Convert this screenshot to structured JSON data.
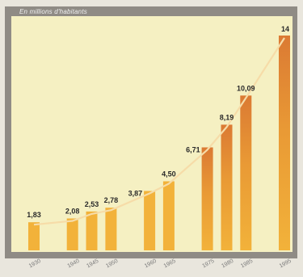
{
  "chart_data": {
    "type": "bar",
    "ylabel": "En millions d'habitants",
    "categories": [
      "1930",
      "1940",
      "1945",
      "1950",
      "1960",
      "1965",
      "1975",
      "1980",
      "1985",
      "1995"
    ],
    "values": [
      1.83,
      2.08,
      2.53,
      2.78,
      3.87,
      4.5,
      6.71,
      8.19,
      10.09,
      14
    ],
    "value_labels": [
      "1,83",
      "2,08",
      "2,53",
      "2,78",
      "3,87",
      "4,50",
      "6,71",
      "8,19",
      "10,09",
      "14"
    ],
    "ylim": [
      0,
      14
    ],
    "grid": false,
    "legend": "none",
    "colors": {
      "bar": "#f2b23a",
      "bar_dark": "#db7a33",
      "trend_line": "#f6dca8",
      "plot_background": "#f5f0c2",
      "frame": "#8f8b85"
    }
  }
}
